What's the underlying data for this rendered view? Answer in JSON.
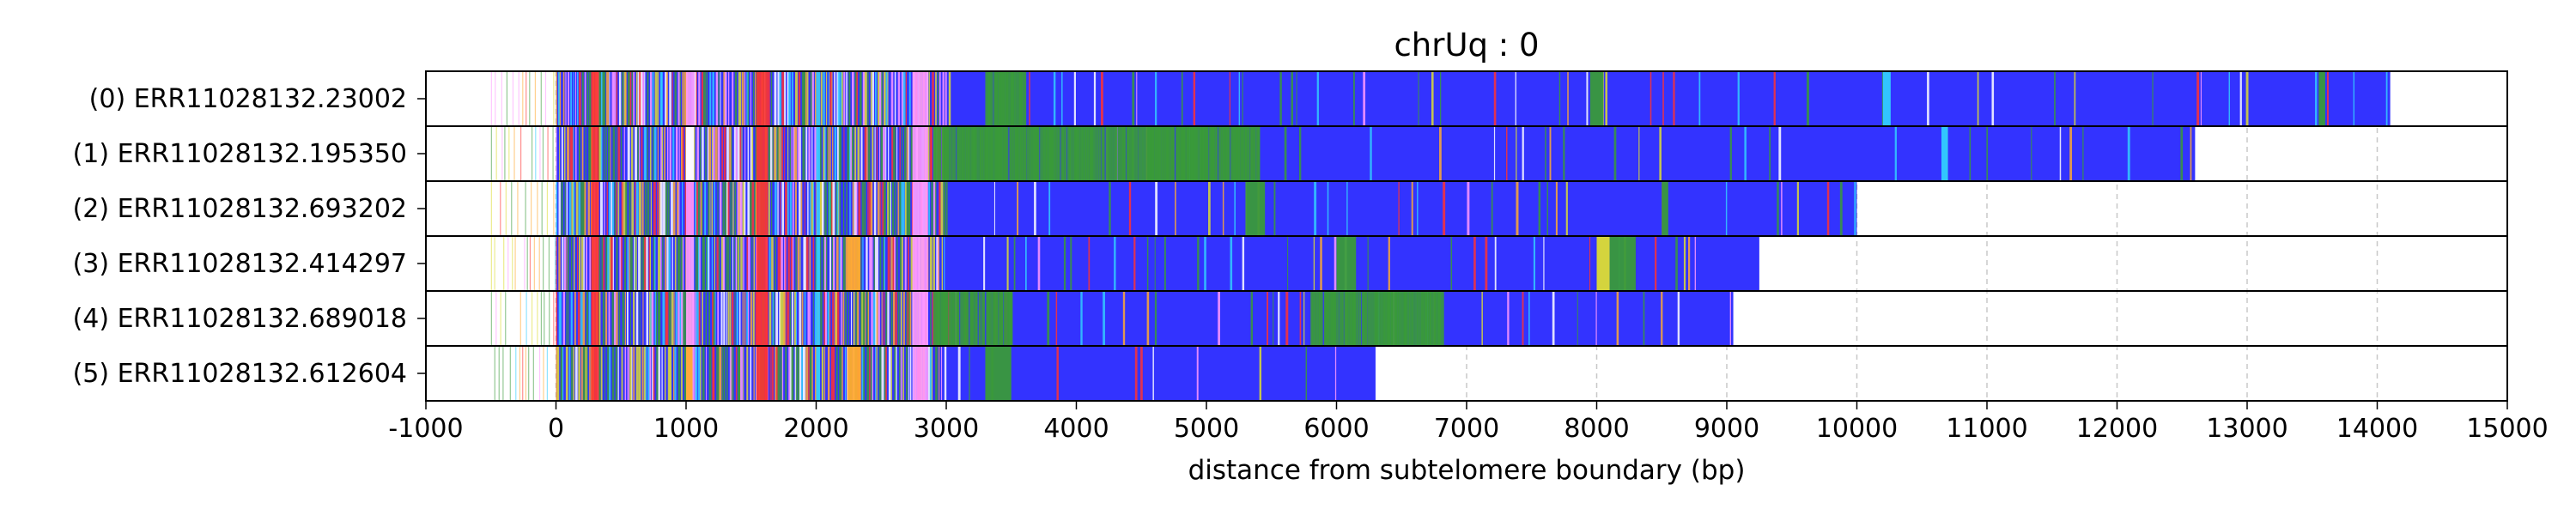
{
  "chart_data": {
    "type": "bar",
    "title": "chrUq : 0",
    "xlabel": "distance from subtelomere boundary (bp)",
    "ylabel": "",
    "xlim": [
      -1000,
      15000
    ],
    "xticks": [
      -1000,
      0,
      1000,
      2000,
      3000,
      4000,
      5000,
      6000,
      7000,
      8000,
      9000,
      10000,
      11000,
      12000,
      13000,
      14000,
      15000
    ],
    "xtick_labels": [
      "-1000",
      "0",
      "1000",
      "2000",
      "3000",
      "4000",
      "5000",
      "6000",
      "7000",
      "8000",
      "9000",
      "10000",
      "11000",
      "12000",
      "13000",
      "14000",
      "15000"
    ],
    "grid": "vertical dashed at major ticks",
    "colors": {
      "dominant": "#3333ff",
      "green": "#3a9a3a",
      "red": "#ff3333",
      "pink": "#ff99ff",
      "orange": "#ffaa33",
      "cyan": "#33ccff",
      "yellow": "#dddd33",
      "white": "#ffffff",
      "grid": "#c8c8c8"
    },
    "reads": [
      {
        "label": "(0) ERR11028132.23002",
        "start": -500,
        "end": 14100
      },
      {
        "label": "(1) ERR11028132.195350",
        "start": -500,
        "end": 12600
      },
      {
        "label": "(2) ERR11028132.693202",
        "start": -500,
        "end": 10000
      },
      {
        "label": "(3) ERR11028132.414297",
        "start": -500,
        "end": 9250
      },
      {
        "label": "(4) ERR11028132.689018",
        "start": -500,
        "end": 9050
      },
      {
        "label": "(5) ERR11028132.612604",
        "start": -500,
        "end": 6300
      }
    ],
    "common_features": [
      {
        "start": 270,
        "end": 330,
        "color": "red"
      },
      {
        "start": 1540,
        "end": 1630,
        "color": "red"
      },
      {
        "start": 1000,
        "end": 1060,
        "color": "pink"
      },
      {
        "start": 2740,
        "end": 2860,
        "color": "pink"
      },
      {
        "start": 2000,
        "end": 2030,
        "color": "cyan"
      }
    ],
    "read_features": [
      [
        {
          "start": 3300,
          "end": 3600,
          "color": "green"
        },
        {
          "start": 7950,
          "end": 8050,
          "color": "green"
        },
        {
          "start": 10200,
          "end": 10260,
          "color": "cyan"
        },
        {
          "start": 13550,
          "end": 13600,
          "color": "green"
        }
      ],
      [
        {
          "start": 2900,
          "end": 5400,
          "color": "green"
        },
        {
          "start": 10650,
          "end": 10700,
          "color": "cyan"
        },
        {
          "start": 1000,
          "end": 1060,
          "color": "white"
        }
      ],
      [
        {
          "start": 5300,
          "end": 5450,
          "color": "green"
        },
        {
          "start": 8500,
          "end": 8550,
          "color": "green"
        }
      ],
      [
        {
          "start": 2240,
          "end": 2340,
          "color": "orange"
        },
        {
          "start": 8000,
          "end": 8100,
          "color": "yellow"
        },
        {
          "start": 8100,
          "end": 8300,
          "color": "green"
        },
        {
          "start": 6000,
          "end": 6150,
          "color": "green"
        }
      ],
      [
        {
          "start": 2900,
          "end": 3500,
          "color": "green"
        },
        {
          "start": 5800,
          "end": 6800,
          "color": "green"
        }
      ],
      [
        {
          "start": 2240,
          "end": 2340,
          "color": "orange"
        },
        {
          "start": 3300,
          "end": 3500,
          "color": "green"
        },
        {
          "start": 1000,
          "end": 1050,
          "color": "orange"
        }
      ]
    ]
  }
}
